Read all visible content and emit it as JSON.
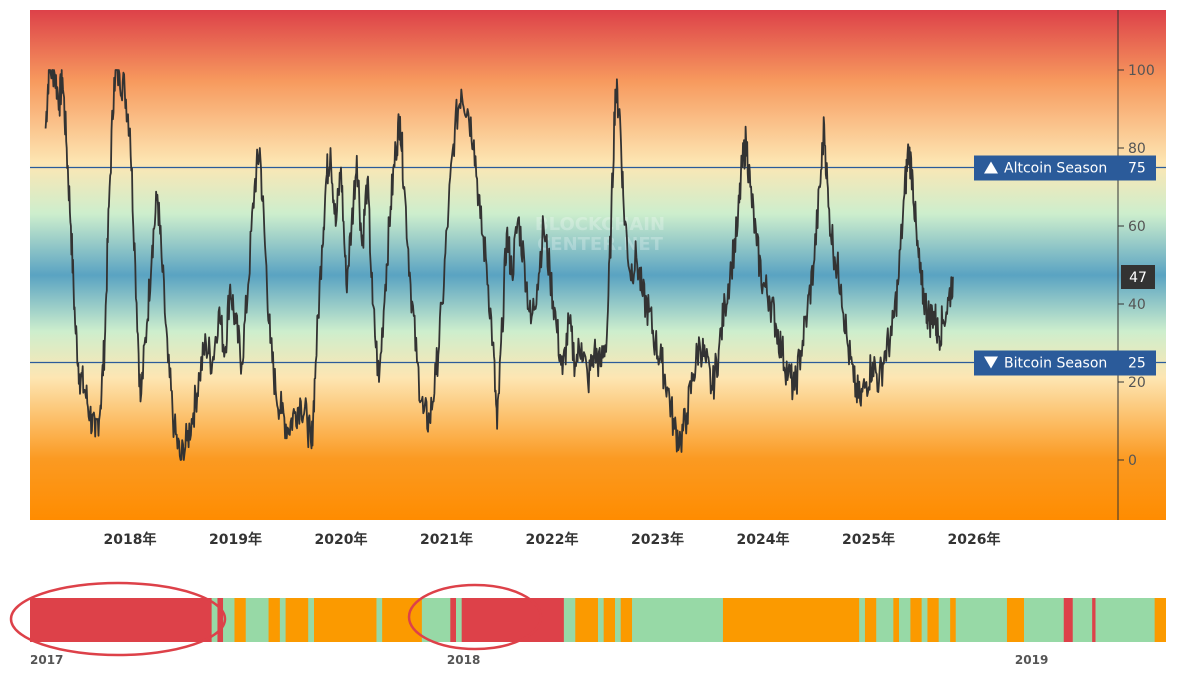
{
  "chart_data": {
    "type": "line",
    "y_ticks": [
      0,
      20,
      40,
      60,
      80,
      100
    ],
    "ylim": [
      -15,
      115
    ],
    "x_ticks": [
      "2018年",
      "2019年",
      "2020年",
      "2021年",
      "2022年",
      "2023年",
      "2024年",
      "2025年",
      "2026年"
    ],
    "x_range_years": [
      2017.2,
      2026.2
    ],
    "current_value": "47",
    "thresholds": [
      {
        "label": "Altcoin Season",
        "value": 75,
        "value_label": "75",
        "color": "#2b5b9a"
      },
      {
        "label": "Bitcoin Season",
        "value": 25,
        "value_label": "25",
        "color": "#2b5b9a"
      }
    ],
    "watermark": [
      "BLOCKCHAIN",
      "CENTER.NET"
    ],
    "line_color": "#333333",
    "background_gradient": [
      "#dd4149",
      "#f79a5e",
      "#fde6b3",
      "#cdeecd",
      "#5aa3c2",
      "#cdeecd",
      "#fde6b3",
      "#fb9a22",
      "#ff8c00"
    ],
    "series_points": [
      [
        2017.2,
        85
      ],
      [
        2017.23,
        100
      ],
      [
        2017.28,
        100
      ],
      [
        2017.33,
        92
      ],
      [
        2017.36,
        98
      ],
      [
        2017.4,
        80
      ],
      [
        2017.44,
        60
      ],
      [
        2017.48,
        35
      ],
      [
        2017.52,
        22
      ],
      [
        2017.57,
        18
      ],
      [
        2017.62,
        12
      ],
      [
        2017.67,
        6
      ],
      [
        2017.72,
        14
      ],
      [
        2017.76,
        30
      ],
      [
        2017.8,
        65
      ],
      [
        2017.85,
        98
      ],
      [
        2017.9,
        99
      ],
      [
        2017.95,
        95
      ],
      [
        2018.0,
        85
      ],
      [
        2018.05,
        50
      ],
      [
        2018.1,
        15
      ],
      [
        2018.16,
        35
      ],
      [
        2018.21,
        55
      ],
      [
        2018.26,
        68
      ],
      [
        2018.3,
        52
      ],
      [
        2018.36,
        25
      ],
      [
        2018.42,
        8
      ],
      [
        2018.48,
        0
      ],
      [
        2018.54,
        5
      ],
      [
        2018.6,
        12
      ],
      [
        2018.66,
        22
      ],
      [
        2018.72,
        30
      ],
      [
        2018.78,
        25
      ],
      [
        2018.84,
        38
      ],
      [
        2018.9,
        28
      ],
      [
        2018.95,
        45
      ],
      [
        2019.0,
        35
      ],
      [
        2019.06,
        25
      ],
      [
        2019.12,
        45
      ],
      [
        2019.18,
        70
      ],
      [
        2019.23,
        80
      ],
      [
        2019.28,
        55
      ],
      [
        2019.33,
        30
      ],
      [
        2019.38,
        18
      ],
      [
        2019.44,
        12
      ],
      [
        2019.5,
        8
      ],
      [
        2019.56,
        12
      ],
      [
        2019.62,
        15
      ],
      [
        2019.68,
        10
      ],
      [
        2019.72,
        3
      ],
      [
        2019.76,
        25
      ],
      [
        2019.82,
        55
      ],
      [
        2019.86,
        72
      ],
      [
        2019.9,
        80
      ],
      [
        2019.95,
        60
      ],
      [
        2020.0,
        75
      ],
      [
        2020.05,
        45
      ],
      [
        2020.1,
        60
      ],
      [
        2020.15,
        78
      ],
      [
        2020.2,
        55
      ],
      [
        2020.25,
        72
      ],
      [
        2020.3,
        40
      ],
      [
        2020.36,
        20
      ],
      [
        2020.42,
        45
      ],
      [
        2020.47,
        65
      ],
      [
        2020.52,
        80
      ],
      [
        2020.56,
        88
      ],
      [
        2020.6,
        70
      ],
      [
        2020.66,
        45
      ],
      [
        2020.72,
        25
      ],
      [
        2020.78,
        12
      ],
      [
        2020.84,
        10
      ],
      [
        2020.9,
        22
      ],
      [
        2020.96,
        40
      ],
      [
        2021.02,
        65
      ],
      [
        2021.08,
        85
      ],
      [
        2021.14,
        95
      ],
      [
        2021.2,
        90
      ],
      [
        2021.26,
        82
      ],
      [
        2021.32,
        62
      ],
      [
        2021.38,
        50
      ],
      [
        2021.44,
        30
      ],
      [
        2021.48,
        8
      ],
      [
        2021.53,
        35
      ],
      [
        2021.57,
        58
      ],
      [
        2021.62,
        48
      ],
      [
        2021.68,
        62
      ],
      [
        2021.74,
        50
      ],
      [
        2021.8,
        35
      ],
      [
        2021.86,
        45
      ],
      [
        2021.92,
        60
      ],
      [
        2021.98,
        48
      ],
      [
        2022.04,
        35
      ],
      [
        2022.1,
        22
      ],
      [
        2022.16,
        35
      ],
      [
        2022.22,
        25
      ],
      [
        2022.28,
        30
      ],
      [
        2022.34,
        20
      ],
      [
        2022.4,
        28
      ],
      [
        2022.46,
        24
      ],
      [
        2022.52,
        32
      ],
      [
        2022.56,
        60
      ],
      [
        2022.6,
        95
      ],
      [
        2022.64,
        90
      ],
      [
        2022.68,
        65
      ],
      [
        2022.74,
        48
      ],
      [
        2022.8,
        52
      ],
      [
        2022.86,
        42
      ],
      [
        2022.92,
        38
      ],
      [
        2022.98,
        30
      ],
      [
        2023.04,
        25
      ],
      [
        2023.1,
        18
      ],
      [
        2023.16,
        8
      ],
      [
        2023.22,
        5
      ],
      [
        2023.28,
        12
      ],
      [
        2023.34,
        22
      ],
      [
        2023.4,
        30
      ],
      [
        2023.46,
        25
      ],
      [
        2023.52,
        18
      ],
      [
        2023.58,
        28
      ],
      [
        2023.64,
        40
      ],
      [
        2023.7,
        50
      ],
      [
        2023.76,
        60
      ],
      [
        2023.8,
        75
      ],
      [
        2023.84,
        82
      ],
      [
        2023.88,
        70
      ],
      [
        2023.94,
        55
      ],
      [
        2024.0,
        45
      ],
      [
        2024.06,
        42
      ],
      [
        2024.12,
        35
      ],
      [
        2024.18,
        28
      ],
      [
        2024.24,
        22
      ],
      [
        2024.3,
        18
      ],
      [
        2024.36,
        28
      ],
      [
        2024.42,
        38
      ],
      [
        2024.48,
        50
      ],
      [
        2024.54,
        70
      ],
      [
        2024.58,
        86
      ],
      [
        2024.62,
        65
      ],
      [
        2024.68,
        52
      ],
      [
        2024.74,
        45
      ],
      [
        2024.8,
        30
      ],
      [
        2024.86,
        20
      ],
      [
        2024.92,
        15
      ],
      [
        2024.98,
        20
      ],
      [
        2025.04,
        25
      ],
      [
        2025.1,
        20
      ],
      [
        2025.16,
        28
      ],
      [
        2025.22,
        32
      ],
      [
        2025.28,
        45
      ],
      [
        2025.34,
        68
      ],
      [
        2025.38,
        80
      ],
      [
        2025.42,
        72
      ],
      [
        2025.46,
        55
      ],
      [
        2025.5,
        45
      ],
      [
        2025.54,
        40
      ],
      [
        2025.58,
        36
      ],
      [
        2025.62,
        38
      ],
      [
        2025.66,
        32
      ],
      [
        2025.7,
        35
      ],
      [
        2025.76,
        41
      ],
      [
        2025.8,
        47
      ]
    ],
    "navigator": {
      "labels": [
        {
          "text": "2017",
          "pos": 0.0
        },
        {
          "text": "2018",
          "pos": 0.367
        },
        {
          "text": "2019",
          "pos": 0.867
        }
      ],
      "segment_colors": {
        "red": "#dd4149",
        "orange": "#fb9a00",
        "green": "#97d9a6"
      },
      "segments": [
        {
          "from": 0.0,
          "to": 0.16,
          "c": "red"
        },
        {
          "from": 0.16,
          "to": 0.165,
          "c": "green"
        },
        {
          "from": 0.165,
          "to": 0.17,
          "c": "red"
        },
        {
          "from": 0.17,
          "to": 0.18,
          "c": "green"
        },
        {
          "from": 0.18,
          "to": 0.19,
          "c": "orange"
        },
        {
          "from": 0.19,
          "to": 0.21,
          "c": "green"
        },
        {
          "from": 0.21,
          "to": 0.22,
          "c": "orange"
        },
        {
          "from": 0.22,
          "to": 0.225,
          "c": "green"
        },
        {
          "from": 0.225,
          "to": 0.245,
          "c": "orange"
        },
        {
          "from": 0.245,
          "to": 0.25,
          "c": "green"
        },
        {
          "from": 0.25,
          "to": 0.305,
          "c": "orange"
        },
        {
          "from": 0.305,
          "to": 0.31,
          "c": "green"
        },
        {
          "from": 0.31,
          "to": 0.345,
          "c": "orange"
        },
        {
          "from": 0.345,
          "to": 0.37,
          "c": "green"
        },
        {
          "from": 0.37,
          "to": 0.375,
          "c": "red"
        },
        {
          "from": 0.375,
          "to": 0.38,
          "c": "green"
        },
        {
          "from": 0.38,
          "to": 0.47,
          "c": "red"
        },
        {
          "from": 0.47,
          "to": 0.48,
          "c": "green"
        },
        {
          "from": 0.48,
          "to": 0.5,
          "c": "orange"
        },
        {
          "from": 0.5,
          "to": 0.505,
          "c": "green"
        },
        {
          "from": 0.505,
          "to": 0.515,
          "c": "orange"
        },
        {
          "from": 0.515,
          "to": 0.52,
          "c": "green"
        },
        {
          "from": 0.52,
          "to": 0.53,
          "c": "orange"
        },
        {
          "from": 0.53,
          "to": 0.61,
          "c": "green"
        },
        {
          "from": 0.61,
          "to": 0.73,
          "c": "orange"
        },
        {
          "from": 0.73,
          "to": 0.735,
          "c": "green"
        },
        {
          "from": 0.735,
          "to": 0.745,
          "c": "orange"
        },
        {
          "from": 0.745,
          "to": 0.76,
          "c": "green"
        },
        {
          "from": 0.76,
          "to": 0.765,
          "c": "orange"
        },
        {
          "from": 0.765,
          "to": 0.775,
          "c": "green"
        },
        {
          "from": 0.775,
          "to": 0.785,
          "c": "orange"
        },
        {
          "from": 0.785,
          "to": 0.79,
          "c": "green"
        },
        {
          "from": 0.79,
          "to": 0.8,
          "c": "orange"
        },
        {
          "from": 0.8,
          "to": 0.81,
          "c": "green"
        },
        {
          "from": 0.81,
          "to": 0.815,
          "c": "orange"
        },
        {
          "from": 0.815,
          "to": 0.86,
          "c": "green"
        },
        {
          "from": 0.86,
          "to": 0.875,
          "c": "orange"
        },
        {
          "from": 0.875,
          "to": 0.91,
          "c": "green"
        },
        {
          "from": 0.91,
          "to": 0.918,
          "c": "red"
        },
        {
          "from": 0.918,
          "to": 0.935,
          "c": "green"
        },
        {
          "from": 0.935,
          "to": 0.938,
          "c": "red"
        },
        {
          "from": 0.938,
          "to": 0.99,
          "c": "green"
        },
        {
          "from": 0.99,
          "to": 1.0,
          "c": "orange"
        }
      ],
      "highlight_color": "#dd4149"
    }
  }
}
